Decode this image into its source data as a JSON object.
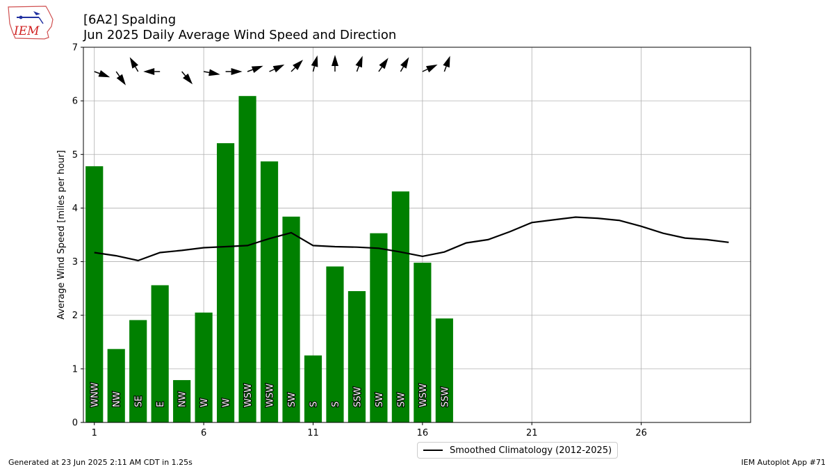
{
  "header": {
    "title_line1": "[6A2] Spalding",
    "title_line2": "Jun 2025 Daily Average Wind Speed and Direction",
    "logo_text": "IEM"
  },
  "footer": {
    "left": "Generated at 23 Jun 2025 2:11 AM CDT in 1.25s",
    "right": "IEM Autoplot App #71"
  },
  "colors": {
    "bar": "#008000",
    "climatology_line": "#000000",
    "grid": "#b0b0b0"
  },
  "chart_data": {
    "type": "bar",
    "xlabel": "",
    "ylabel": "Average Wind Speed [miles per hour]",
    "xlim": [
      0.5,
      31
    ],
    "ylim": [
      0,
      7
    ],
    "x_ticks": [
      1,
      6,
      11,
      16,
      21,
      26
    ],
    "y_ticks": [
      0,
      1,
      2,
      3,
      4,
      5,
      6,
      7
    ],
    "grid": true,
    "legend_position": "bottom-center",
    "bars": {
      "days": [
        1,
        2,
        3,
        4,
        5,
        6,
        7,
        8,
        9,
        10,
        11,
        12,
        13,
        14,
        15,
        16,
        17
      ],
      "values": [
        4.78,
        1.37,
        1.91,
        2.56,
        0.79,
        2.05,
        5.21,
        6.09,
        4.87,
        3.84,
        1.25,
        2.91,
        2.45,
        3.53,
        4.31,
        2.98,
        1.94
      ],
      "directions": [
        "WNW",
        "NW",
        "SE",
        "E",
        "NW",
        "W",
        "W",
        "WSW",
        "WSW",
        "SW",
        "S",
        "S",
        "SSW",
        "SW",
        "SW",
        "WSW",
        "SSW"
      ],
      "arrow_directions_deg": [
        290,
        325,
        150,
        90,
        320,
        280,
        270,
        250,
        245,
        225,
        195,
        180,
        200,
        215,
        210,
        245,
        200
      ]
    },
    "series": [
      {
        "name": "Smoothed Climatology (2012-2025)",
        "x": [
          1,
          2,
          3,
          4,
          5,
          6,
          7,
          8,
          9,
          10,
          11,
          12,
          13,
          14,
          15,
          16,
          17,
          18,
          19,
          20,
          21,
          22,
          23,
          24,
          25,
          26,
          27,
          28,
          29,
          30
        ],
        "values": [
          3.17,
          3.11,
          3.02,
          3.17,
          3.21,
          3.26,
          3.28,
          3.3,
          3.43,
          3.54,
          3.3,
          3.28,
          3.27,
          3.25,
          3.18,
          3.1,
          3.18,
          3.35,
          3.41,
          3.56,
          3.73,
          3.78,
          3.83,
          3.81,
          3.77,
          3.66,
          3.53,
          3.44,
          3.41,
          3.36
        ]
      }
    ]
  }
}
